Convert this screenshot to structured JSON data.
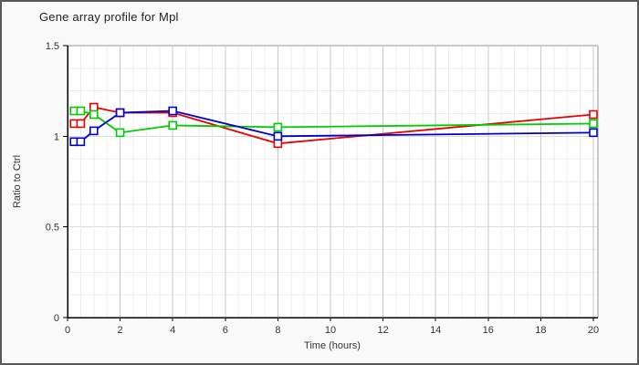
{
  "header": {
    "title": "Gene array profile for Mpl"
  },
  "chart_data": {
    "type": "line",
    "title": "Gene array profile for Mpl",
    "xlabel": "Time (hours)",
    "ylabel": "Ratio to Ctrl",
    "x": [
      0.25,
      0.5,
      1,
      2,
      4,
      8,
      20
    ],
    "series": [
      {
        "name": "red",
        "color": "#e60000",
        "values": [
          1.07,
          1.07,
          1.16,
          1.13,
          1.13,
          0.96,
          1.12
        ]
      },
      {
        "name": "green",
        "color": "#00cc00",
        "values": [
          1.14,
          1.14,
          1.12,
          1.02,
          1.06,
          1.05,
          1.07
        ]
      },
      {
        "name": "blue",
        "color": "#0000cc",
        "values": [
          0.97,
          0.97,
          1.03,
          1.13,
          1.14,
          1.0,
          1.02
        ]
      }
    ],
    "xlim": [
      0,
      20.2
    ],
    "ylim": [
      0,
      1.5
    ],
    "x_ticks": [
      0,
      2,
      4,
      6,
      8,
      10,
      12,
      14,
      16,
      18,
      20
    ],
    "y_ticks": [
      "0",
      "0.5",
      "1",
      "1.5"
    ],
    "x_minor_step": 0.5,
    "x_major_step": 2,
    "y_minor_step": 0.125,
    "y_major_step": 0.5,
    "marker": "square",
    "legend": "none",
    "grid": true,
    "colors": {
      "axis": "#000000",
      "grid_minor": "#ececec",
      "grid_mid": "#dcdcdc",
      "grid_major": "#c9c9c9",
      "plot_bg": "#ffffff",
      "page_bg": "#f9f9f9",
      "border": "#58585a",
      "text": "#333333"
    }
  }
}
